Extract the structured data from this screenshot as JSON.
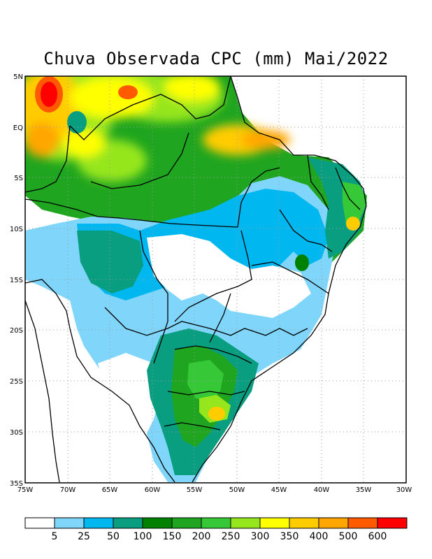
{
  "title": "Chuva Observada CPC (mm) Mai/2022",
  "map": {
    "lon_range": [
      -75,
      -30
    ],
    "lat_range": [
      -35,
      5
    ],
    "grid_lines": "dotted",
    "lon_ticks": [
      "75W",
      "70W",
      "65W",
      "60W",
      "55W",
      "50W",
      "45W",
      "40W",
      "35W",
      "30W"
    ],
    "lat_ticks": [
      "5N",
      "EQ",
      "5S",
      "10S",
      "15S",
      "20S",
      "25S",
      "30S",
      "35S"
    ]
  },
  "colorbar": {
    "colors": [
      "#ffffff",
      "#7fd6fa",
      "#00b7f0",
      "#0a9e80",
      "#008200",
      "#1fa51f",
      "#37c837",
      "#96e61e",
      "#ffff00",
      "#ffcc00",
      "#ffa600",
      "#ff5a00",
      "#ff0000"
    ],
    "labels": [
      "5",
      "25",
      "50",
      "100",
      "150",
      "200",
      "250",
      "300",
      "350",
      "400",
      "500",
      "600"
    ]
  }
}
